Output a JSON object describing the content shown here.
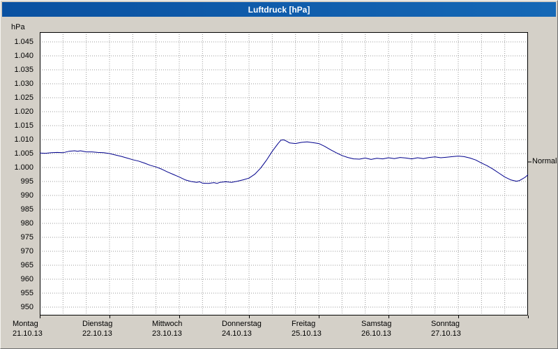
{
  "window": {
    "title": "Luftdruck [hPa]"
  },
  "colors": {
    "titlebar_left": "#0a51a1",
    "titlebar_right": "#1568b6",
    "titlebar_text": "#ffffff",
    "window_bg": "#d4d0c8",
    "plot_bg": "#ffffff",
    "grid": "#9a9a9a",
    "plot_border": "#000000",
    "line": "#00008c"
  },
  "chart_data": {
    "type": "line",
    "title": "Luftdruck [hPa]",
    "ylabel": "hPa",
    "series_name": "Luftdruck",
    "line_color": "#00008c",
    "ylim_displayed": [
      945.5,
      1048.5
    ],
    "grid": {
      "x_step_hours": 8,
      "style": "dotted"
    },
    "y_ticks": [
      {
        "value": 1045,
        "label": "1.045"
      },
      {
        "value": 1040,
        "label": "1.040"
      },
      {
        "value": 1035,
        "label": "1.035"
      },
      {
        "value": 1030,
        "label": "1.030"
      },
      {
        "value": 1025,
        "label": "1.025"
      },
      {
        "value": 1020,
        "label": "1.020"
      },
      {
        "value": 1015,
        "label": "1.015"
      },
      {
        "value": 1010,
        "label": "1.010"
      },
      {
        "value": 1005,
        "label": "1.005"
      },
      {
        "value": 1000,
        "label": "1.000"
      },
      {
        "value": 995,
        "label": "995"
      },
      {
        "value": 990,
        "label": "990"
      },
      {
        "value": 985,
        "label": "985"
      },
      {
        "value": 980,
        "label": "980"
      },
      {
        "value": 975,
        "label": "975"
      },
      {
        "value": 970,
        "label": "970"
      },
      {
        "value": 965,
        "label": "965"
      },
      {
        "value": 960,
        "label": "960"
      },
      {
        "value": 955,
        "label": "955"
      },
      {
        "value": 950,
        "label": "950"
      }
    ],
    "x_days": [
      {
        "name": "Montag",
        "date": "21.10.13"
      },
      {
        "name": "Dienstag",
        "date": "22.10.13"
      },
      {
        "name": "Mittwoch",
        "date": "23.10.13"
      },
      {
        "name": "Donnerstag",
        "date": "24.10.13"
      },
      {
        "name": "Freitag",
        "date": "25.10.13"
      },
      {
        "name": "Samstag",
        "date": "26.10.13"
      },
      {
        "name": "Sonntag",
        "date": "27.10.13"
      }
    ],
    "x_hours_total": 168,
    "normal_marker": {
      "label": "Normal",
      "value": 1002
    },
    "points": [
      [
        0,
        1005.2
      ],
      [
        2,
        1005.1
      ],
      [
        4,
        1005.3
      ],
      [
        6,
        1005.4
      ],
      [
        8,
        1005.3
      ],
      [
        10,
        1005.8
      ],
      [
        12,
        1006.0
      ],
      [
        13,
        1005.8
      ],
      [
        14,
        1006.0
      ],
      [
        16,
        1005.6
      ],
      [
        18,
        1005.6
      ],
      [
        20,
        1005.4
      ],
      [
        22,
        1005.3
      ],
      [
        24,
        1005.0
      ],
      [
        26,
        1004.5
      ],
      [
        28,
        1004.0
      ],
      [
        30,
        1003.4
      ],
      [
        32,
        1002.8
      ],
      [
        34,
        1002.3
      ],
      [
        36,
        1001.6
      ],
      [
        38,
        1000.8
      ],
      [
        40,
        1000.2
      ],
      [
        42,
        999.4
      ],
      [
        44,
        998.4
      ],
      [
        46,
        997.5
      ],
      [
        48,
        996.6
      ],
      [
        50,
        995.6
      ],
      [
        52,
        995.0
      ],
      [
        54,
        994.7
      ],
      [
        55,
        994.9
      ],
      [
        56,
        994.4
      ],
      [
        58,
        994.3
      ],
      [
        60,
        994.6
      ],
      [
        61,
        994.3
      ],
      [
        62,
        994.7
      ],
      [
        64,
        994.9
      ],
      [
        66,
        994.7
      ],
      [
        68,
        995.1
      ],
      [
        70,
        995.6
      ],
      [
        72,
        996.2
      ],
      [
        74,
        997.6
      ],
      [
        76,
        999.8
      ],
      [
        78,
        1002.6
      ],
      [
        80,
        1005.8
      ],
      [
        82,
        1008.6
      ],
      [
        83,
        1009.8
      ],
      [
        84,
        1009.9
      ],
      [
        85,
        1009.4
      ],
      [
        86,
        1008.8
      ],
      [
        88,
        1008.6
      ],
      [
        90,
        1009.0
      ],
      [
        92,
        1009.2
      ],
      [
        94,
        1008.9
      ],
      [
        96,
        1008.6
      ],
      [
        98,
        1007.6
      ],
      [
        100,
        1006.4
      ],
      [
        102,
        1005.3
      ],
      [
        104,
        1004.3
      ],
      [
        106,
        1003.6
      ],
      [
        108,
        1003.1
      ],
      [
        110,
        1003.0
      ],
      [
        112,
        1003.4
      ],
      [
        114,
        1002.9
      ],
      [
        116,
        1003.3
      ],
      [
        118,
        1003.1
      ],
      [
        120,
        1003.5
      ],
      [
        122,
        1003.2
      ],
      [
        124,
        1003.6
      ],
      [
        126,
        1003.4
      ],
      [
        128,
        1003.1
      ],
      [
        130,
        1003.5
      ],
      [
        132,
        1003.2
      ],
      [
        134,
        1003.6
      ],
      [
        136,
        1003.8
      ],
      [
        138,
        1003.5
      ],
      [
        140,
        1003.7
      ],
      [
        142,
        1003.9
      ],
      [
        144,
        1004.1
      ],
      [
        146,
        1003.9
      ],
      [
        148,
        1003.4
      ],
      [
        150,
        1002.7
      ],
      [
        152,
        1001.6
      ],
      [
        154,
        1000.6
      ],
      [
        156,
        999.4
      ],
      [
        158,
        998.0
      ],
      [
        160,
        996.6
      ],
      [
        162,
        995.6
      ],
      [
        164,
        995.1
      ],
      [
        165,
        995.3
      ],
      [
        166,
        995.9
      ],
      [
        167,
        996.5
      ],
      [
        168,
        997.4
      ]
    ]
  }
}
